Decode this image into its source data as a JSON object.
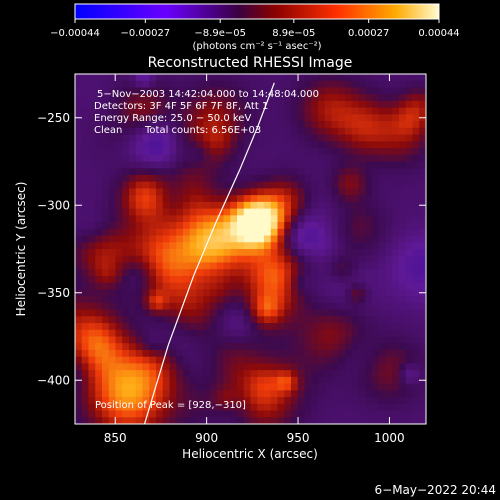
{
  "chart_data": {
    "type": "heatmap",
    "title": "Reconstructed RHESSI Image",
    "xlabel": "Heliocentric X (arcsec)",
    "ylabel": "Heliocentric Y (arcsec)",
    "xlim": [
      828,
      1020
    ],
    "ylim": [
      -425,
      -225
    ],
    "x_ticks": [
      850,
      900,
      950,
      1000
    ],
    "y_ticks": [
      -250,
      -300,
      -350,
      -400
    ],
    "x_tick_labels": [
      "850",
      "900",
      "950",
      "1000"
    ],
    "y_tick_labels": [
      "−250",
      "−300",
      "−350",
      "−400"
    ],
    "colorbar": {
      "range": [
        -0.00044,
        0.00044
      ],
      "ticks": [
        -0.00044,
        -0.00027,
        -8.9e-05,
        8.9e-05,
        0.00027,
        0.00044
      ],
      "tick_labels": [
        "−0.00044",
        "−0.00027",
        "−8.9e−05",
        "8.9e−05",
        "0.00027",
        "0.00044"
      ],
      "units": "(photons cm⁻² s⁻¹ asec⁻²)",
      "colormap": [
        "#0000ff",
        "#7a00ff",
        "#6b0000",
        "#ff2200",
        "#ff9a00",
        "#fff6a0"
      ]
    },
    "annotations": {
      "time_range": "5−Nov−2003 14:42:04.000 to 14:48:04.000",
      "detectors": "Detectors: 3F 4F 5F 6F 7F 8F, Att 1",
      "energy_range": "Energy Range: 25.0 − 50.0 keV",
      "method": "Clean",
      "total_counts": "Total counts: 6.56E+03",
      "peak_position": "Position of Peak = [928,−310]"
    },
    "peak": [
      928,
      -310
    ],
    "limb_curve": [
      [
        866,
        -425
      ],
      [
        879,
        -380
      ],
      [
        893,
        -340
      ],
      [
        905,
        -310
      ],
      [
        918,
        -280
      ],
      [
        928,
        -255
      ],
      [
        937,
        -230
      ]
    ]
  },
  "footer": {
    "timestamp": "6−May−2022 20:44"
  }
}
